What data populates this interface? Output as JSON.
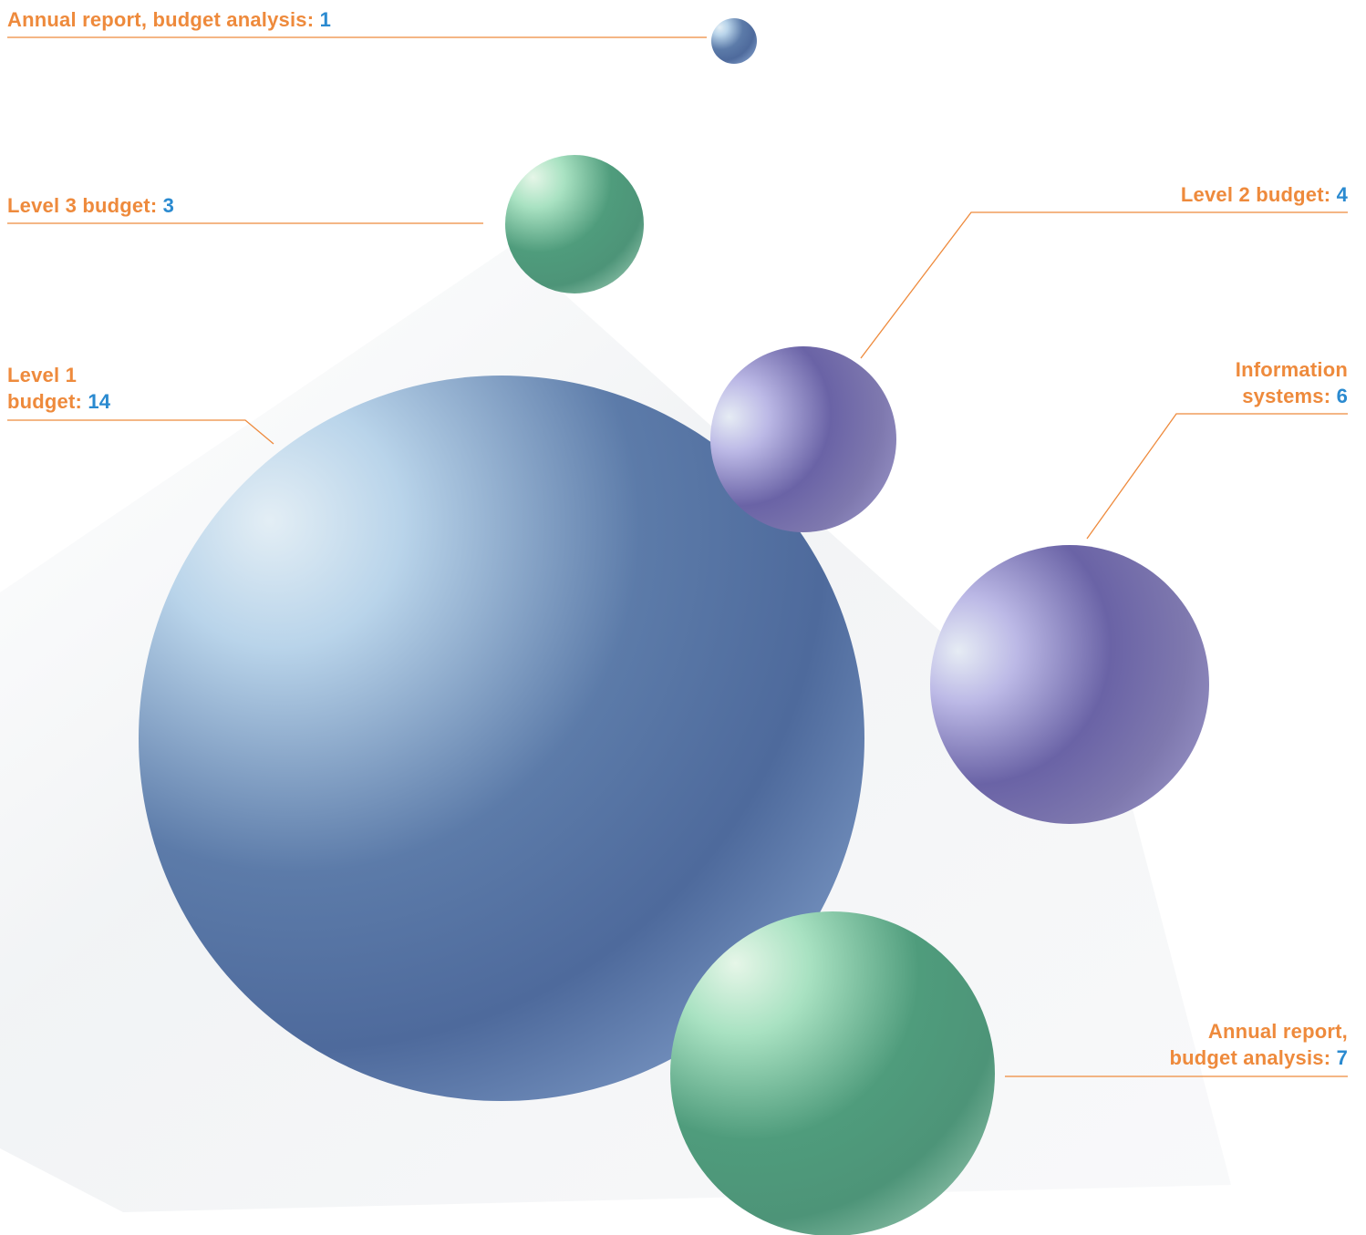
{
  "palette": {
    "label_text": "#EE8A3C",
    "label_value": "#2A8AD0",
    "leader_line": "#EE8A3C"
  },
  "chart_data": {
    "type": "bubble",
    "title": "",
    "grid": false,
    "legend": "none",
    "bubbles": [
      {
        "id": "annual-report-small",
        "label": "Annual report, budget analysis:",
        "label_lines": [
          "Annual report, budget analysis:"
        ],
        "value": 1,
        "value_text": "1",
        "color": "blue"
      },
      {
        "id": "level-3-budget",
        "label": "Level 3 budget:",
        "label_lines": [
          "Level 3 budget:"
        ],
        "value": 3,
        "value_text": "3",
        "color": "green"
      },
      {
        "id": "level-2-budget",
        "label": "Level 2 budget:",
        "label_lines": [
          "Level 2 budget:"
        ],
        "value": 4,
        "value_text": "4",
        "color": "purple"
      },
      {
        "id": "level-1-budget",
        "label": "Level 1 budget:",
        "label_lines": [
          "Level 1",
          "budget:"
        ],
        "value": 14,
        "value_text": "14",
        "color": "blue"
      },
      {
        "id": "information-systems",
        "label": "Information systems:",
        "label_lines": [
          "Information",
          "systems:"
        ],
        "value": 6,
        "value_text": "6",
        "color": "purple"
      },
      {
        "id": "annual-report-large",
        "label": "Annual report, budget analysis:",
        "label_lines": [
          "Annual report,",
          "budget analysis:"
        ],
        "value": 7,
        "value_text": "7",
        "color": "green"
      }
    ]
  }
}
